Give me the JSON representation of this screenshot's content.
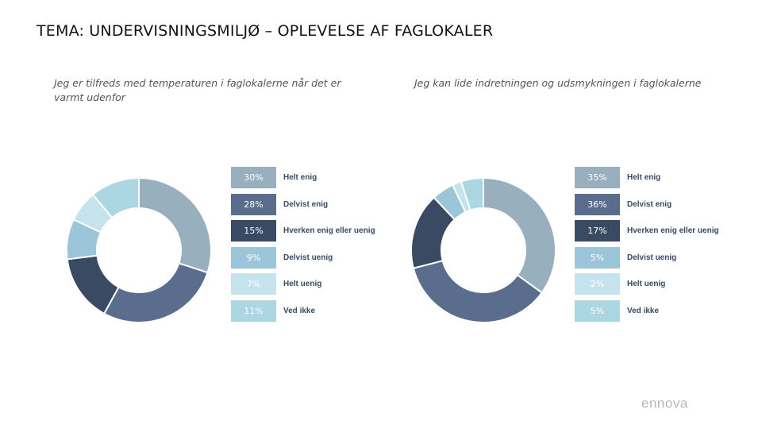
{
  "title": "TEMA: UNDERVISNINGSMILJØ – OPLEVELSE AF FAGLOKALER",
  "logo_text": "ennova",
  "chart_data": [
    {
      "type": "pie",
      "title": "Jeg er tilfreds med temperaturen i faglokalerne når det er varmt udenfor",
      "categories": [
        "Helt enig",
        "Delvist enig",
        "Hverken enig eller uenig",
        "Delvist uenig",
        "Helt uenig",
        "Ved ikke"
      ],
      "values": [
        30,
        28,
        15,
        9,
        7,
        11
      ],
      "value_labels": [
        "30%",
        "28%",
        "15%",
        "9%",
        "7%",
        "11%"
      ],
      "colors": [
        "#98b0be",
        "#5a6d8c",
        "#3b4a63",
        "#9bc5d8",
        "#c5e3ec",
        "#abd6e2"
      ],
      "donut": true,
      "legend": "right"
    },
    {
      "type": "pie",
      "title": "Jeg kan lide indretningen og udsmykningen i faglokalerne",
      "categories": [
        "Helt enig",
        "Delvist enig",
        "Hverken enig eller uenig",
        "Delvist uenig",
        "Helt uenig",
        "Ved ikke"
      ],
      "values": [
        35,
        36,
        17,
        5,
        2,
        5
      ],
      "value_labels": [
        "35%",
        "36%",
        "17%",
        "5%",
        "2%",
        "5%"
      ],
      "colors": [
        "#98b0be",
        "#5a6d8c",
        "#3b4a63",
        "#9bc5d8",
        "#c5e3ec",
        "#abd6e2"
      ],
      "donut": true,
      "legend": "right"
    }
  ]
}
